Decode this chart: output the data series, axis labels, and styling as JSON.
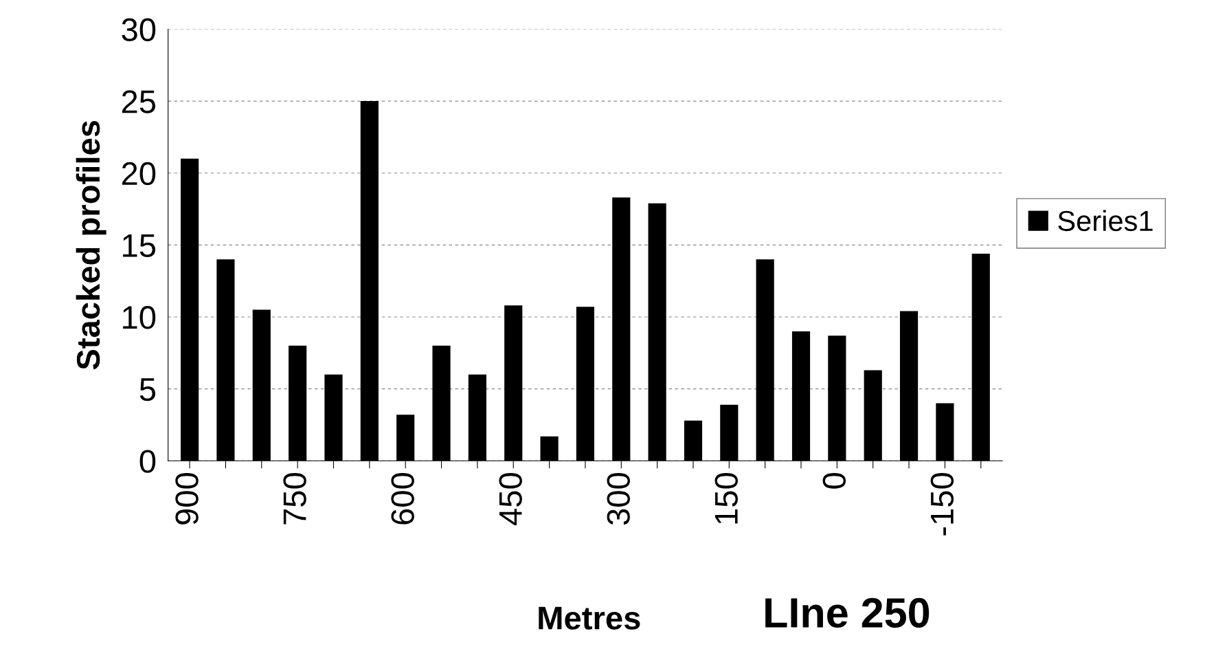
{
  "chart_data": {
    "type": "bar",
    "title": "LIne 250",
    "xlabel": "Metres",
    "ylabel": "Stacked profiles",
    "categories": [
      "900",
      null,
      null,
      "750",
      null,
      null,
      "600",
      null,
      null,
      "450",
      null,
      null,
      "300",
      null,
      null,
      "150",
      null,
      null,
      "0",
      null,
      null,
      "-150",
      null
    ],
    "series": [
      {
        "name": "Series1",
        "color": "#000000",
        "values": [
          21,
          14,
          10.5,
          8,
          6,
          25,
          3.2,
          8,
          6,
          10.8,
          1.7,
          10.7,
          18.3,
          17.9,
          2.8,
          3.9,
          14,
          9,
          8.7,
          6.3,
          10.4,
          4,
          14.4
        ]
      }
    ],
    "ylim": [
      0,
      30
    ],
    "yticks": [
      0,
      5,
      10,
      15,
      20,
      25,
      30
    ],
    "grid": "y",
    "legend": "right"
  }
}
